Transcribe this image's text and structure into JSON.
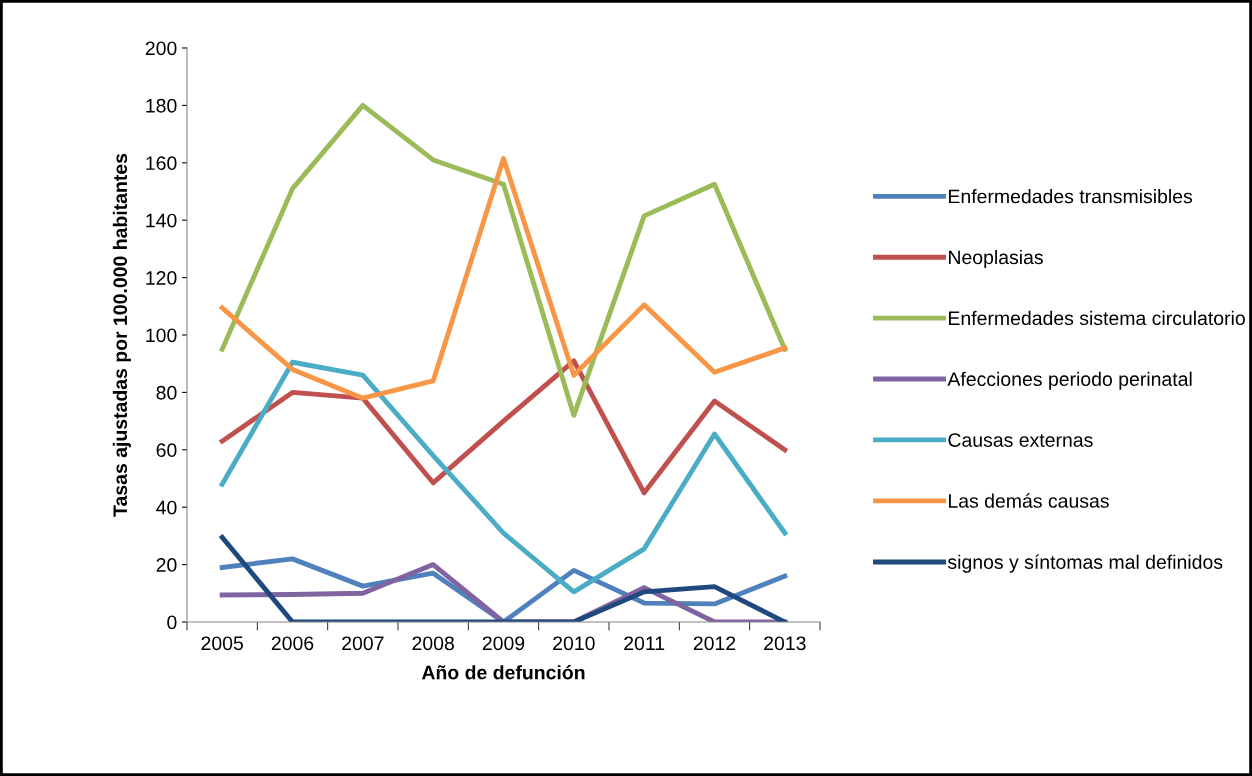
{
  "chart_data": {
    "type": "line",
    "xlabel": "Año de defunción",
    "ylabel": "Tasas ajustadas por 100.000 habitantes",
    "categories": [
      "2005",
      "2006",
      "2007",
      "2008",
      "2009",
      "2010",
      "2011",
      "2012",
      "2013"
    ],
    "ylim": [
      0,
      200
    ],
    "yticks": [
      0,
      20,
      40,
      60,
      80,
      100,
      120,
      140,
      160,
      180,
      200
    ],
    "grid": false,
    "legend": "right",
    "marker": "none",
    "line_style": "solid",
    "series": [
      {
        "name": "Enfermedades transmisibles",
        "color": "#4f81bd",
        "values": [
          19,
          22,
          12.5,
          17,
          0,
          18,
          6.6,
          6.3,
          16
        ]
      },
      {
        "name": "Neoplasias",
        "color": "#c0504d",
        "values": [
          63,
          80,
          78,
          48.5,
          70,
          91,
          45,
          77,
          60
        ]
      },
      {
        "name": "Enfermedades sistema circulatorio",
        "color": "#9bbb59",
        "values": [
          95,
          151,
          180,
          161,
          152.5,
          72,
          141.5,
          152.5,
          95
        ]
      },
      {
        "name": "Afecciones periodo perinatal",
        "color": "#8064a2",
        "values": [
          9.4,
          9.6,
          10,
          20,
          0,
          0,
          12,
          0,
          0
        ]
      },
      {
        "name": "Causas externas",
        "color": "#4bacc6",
        "values": [
          48,
          90.5,
          86,
          58,
          31,
          10.5,
          25.5,
          65.5,
          31
        ]
      },
      {
        "name": "Las demás causas",
        "color": "#f79646",
        "values": [
          109.5,
          88,
          78,
          84,
          161.5,
          86,
          110.5,
          87,
          95.5
        ]
      },
      {
        "name": "signos y síntomas mal definidos",
        "color": "#1f497d",
        "values": [
          29.5,
          0,
          0,
          0,
          0,
          0,
          10.5,
          12.3,
          0
        ]
      }
    ]
  }
}
